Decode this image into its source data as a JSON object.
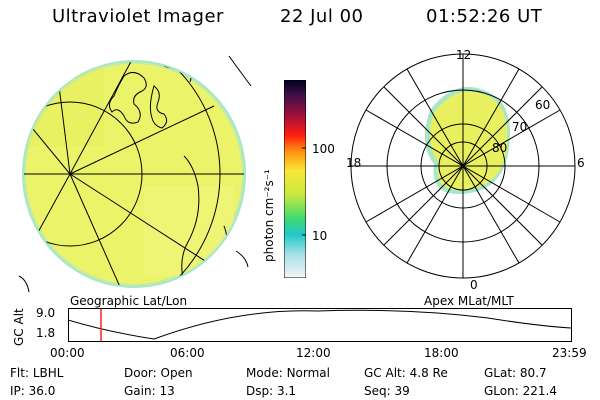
{
  "header": {
    "title": "Ultraviolet Imager",
    "date": "22 Jul 00",
    "time": "01:52:26 UT"
  },
  "colorbar": {
    "unit_label": "photon cm⁻²s⁻¹",
    "ticks": [
      "100",
      "10"
    ]
  },
  "map_left": {
    "caption": "Geographic Lat/Lon"
  },
  "map_right": {
    "caption": "Apex MLat/MLT",
    "mlt_labels": {
      "top": "12",
      "left": "18",
      "right": "6",
      "bottom": "0"
    },
    "lat_labels": [
      "60",
      "70",
      "80"
    ]
  },
  "altitude_strip": {
    "ylabel": "GC Alt",
    "ymax_label": "9.0",
    "ymin_label": "1.8",
    "time_ticks": [
      "00:00",
      "06:00",
      "12:00",
      "18:00",
      "23:59"
    ],
    "marker_time": "01:52",
    "marker_color": "#ff2020"
  },
  "info": {
    "row1": [
      {
        "label": "Flt:",
        "value": "LBHL"
      },
      {
        "label": "Door:",
        "value": "Open"
      },
      {
        "label": "Mode:",
        "value": "Normal"
      },
      {
        "label": "GC Alt:",
        "value": "4.8 Re"
      },
      {
        "label": "GLat:",
        "value": "80.7"
      }
    ],
    "row2": [
      {
        "label": "IP:",
        "value": "36.0"
      },
      {
        "label": "Gain:",
        "value": "13"
      },
      {
        "label": "Dsp:",
        "value": "3.1"
      },
      {
        "label": "Seq:",
        "value": "39"
      },
      {
        "label": "GLon:",
        "value": "221.4"
      }
    ]
  },
  "colors": {
    "emission_fill": "#e8f060",
    "emission_edge": "#9ee0c0"
  }
}
